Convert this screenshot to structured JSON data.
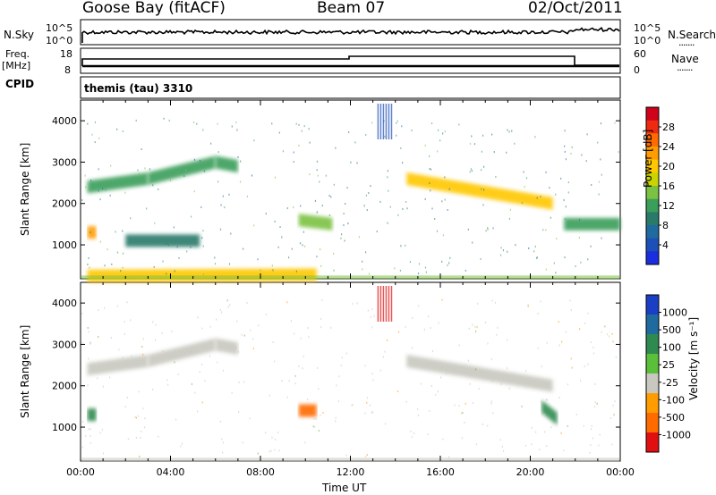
{
  "header": {
    "station": "Goose Bay (fitACF)",
    "beam": "Beam 07",
    "date": "02/Oct/2011"
  },
  "top_panels": {
    "nsky_label": "N.Sky",
    "nsearch_label": "N.Search",
    "noise_ticks": [
      "10^5",
      "10^0"
    ],
    "freq_label": "Freq.",
    "freq_unit": "[MHz]",
    "freq_ticks": [
      "18",
      "8"
    ],
    "nave_label": "Nave",
    "nave_ticks": [
      "60",
      "0"
    ],
    "cpid_label": "CPID",
    "cpid_value": "themis (tau) 3310"
  },
  "legend_styles": {
    "dotted": "......."
  },
  "colorbars": {
    "power": {
      "label": "Power [dB]",
      "ticks": [
        "28",
        "24",
        "20",
        "16",
        "12",
        "8",
        "4"
      ],
      "colors": [
        "#d0021b",
        "#ee2a10",
        "#ff6b00",
        "#ff9d00",
        "#ffc800",
        "#c9d400",
        "#7cc242",
        "#3b9e5a",
        "#2a7a6a",
        "#1f6a9e",
        "#1d4fb8",
        "#1a2ee0"
      ]
    },
    "velocity": {
      "label": "Velocity [m s⁻¹]",
      "ticks": [
        "1000",
        "500",
        "100",
        "25",
        "-25",
        "-100",
        "-500",
        "-1000"
      ],
      "colors": [
        "#1a3fc4",
        "#1f6a9e",
        "#2f8a4f",
        "#5bbf3a",
        "#c8c8c0",
        "#ff9d00",
        "#ff6b00",
        "#e01010"
      ]
    }
  },
  "chart_data": [
    {
      "type": "heatmap",
      "panel": "power",
      "ylabel": "Slant Range [km]",
      "yticks": [
        "4000",
        "3000",
        "2000",
        "1000"
      ],
      "ylim": [
        180,
        4500
      ],
      "xlim": [
        "00:00",
        "24:00"
      ],
      "colorbar_label": "Power [dB]",
      "bands": [
        {
          "name": "upper arc",
          "t": [
            0.3,
            3.0,
            6.0,
            7.0
          ],
          "range_km": [
            2400,
            2600,
            3000,
            2900
          ],
          "power_db": 12
        },
        {
          "name": "low echoes",
          "t": [
            0.3,
            0.7
          ],
          "range_km": [
            1300,
            1300
          ],
          "power_db": 22
        },
        {
          "name": "mid arc",
          "t": [
            2.0,
            5.3
          ],
          "range_km": [
            1100,
            1100
          ],
          "power_db": 9
        },
        {
          "name": "near-range",
          "t": [
            0.3,
            10.5
          ],
          "range_km": [
            250,
            280
          ],
          "power_db": 18
        },
        {
          "name": "evening patch",
          "t": [
            9.7,
            11.2
          ],
          "range_km": [
            1600,
            1500
          ],
          "power_db": 14
        },
        {
          "name": "night arc",
          "t": [
            14.5,
            21.0
          ],
          "range_km": [
            2600,
            2000
          ],
          "power_db": 20
        },
        {
          "name": "late echoes",
          "t": [
            21.5,
            24.0
          ],
          "range_km": [
            1500,
            1500
          ],
          "power_db": 10
        }
      ]
    },
    {
      "type": "heatmap",
      "panel": "velocity",
      "ylabel": "Slant Range [km]",
      "yticks": [
        "4000",
        "3000",
        "2000",
        "1000"
      ],
      "ylim": [
        180,
        4500
      ],
      "xlim": [
        "00:00",
        "24:00"
      ],
      "xlabel": "Time UT",
      "xticks": [
        "00:00",
        "04:00",
        "08:00",
        "12:00",
        "16:00",
        "20:00",
        "00:00"
      ],
      "colorbar_label": "Velocity [m s⁻¹]",
      "bands": [
        {
          "name": "upper arc",
          "t": [
            0.3,
            3.0,
            6.0,
            7.0
          ],
          "range_km": [
            2400,
            2600,
            3000,
            2900
          ],
          "velocity": 0
        },
        {
          "name": "low echoes",
          "t": [
            0.3,
            0.7
          ],
          "range_km": [
            1300,
            1300
          ],
          "velocity": 300
        },
        {
          "name": "evening patch",
          "t": [
            9.7,
            10.5
          ],
          "range_km": [
            1400,
            1400
          ],
          "velocity": -400
        },
        {
          "name": "night arc",
          "t": [
            14.5,
            21.0
          ],
          "range_km": [
            2600,
            2000
          ],
          "velocity": 0
        },
        {
          "name": "late echoes",
          "t": [
            20.5,
            21.2
          ],
          "range_km": [
            1500,
            1200
          ],
          "velocity": 200
        }
      ]
    }
  ]
}
